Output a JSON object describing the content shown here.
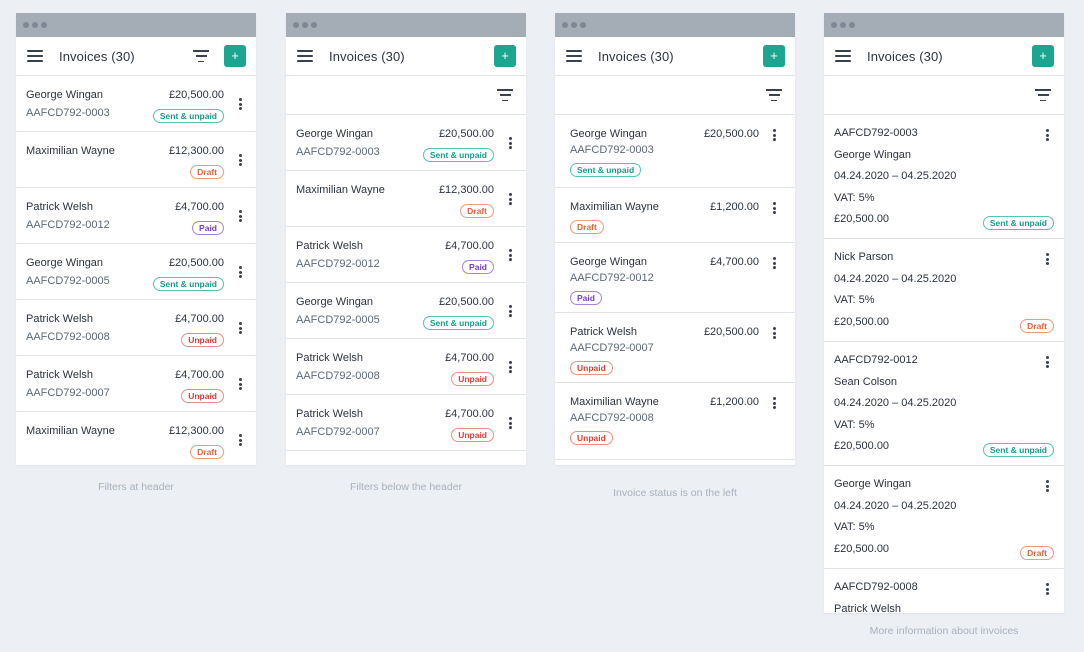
{
  "header": {
    "title": "Invoices (30)",
    "add_label": "+"
  },
  "colors": {
    "accent": "#1ea592",
    "sent": "#1a9c8a",
    "draft": "#e06540",
    "paid": "#7b3fc4",
    "unpaid": "#d8403a"
  },
  "mockups": [
    {
      "caption": "Filters at header",
      "rows": [
        {
          "name": "George Wingan",
          "id": "AAFCD792-0003",
          "amount": "£20,500.00",
          "status": "Sent & unpaid",
          "kind": "sent"
        },
        {
          "name": "Maximilian Wayne",
          "id": "",
          "amount": "£12,300.00",
          "status": "Draft",
          "kind": "draft"
        },
        {
          "name": "Patrick Welsh",
          "id": "AAFCD792-0012",
          "amount": "£4,700.00",
          "status": "Paid",
          "kind": "paid"
        },
        {
          "name": "George Wingan",
          "id": "AAFCD792-0005",
          "amount": "£20,500.00",
          "status": "Sent & unpaid",
          "kind": "sent"
        },
        {
          "name": "Patrick Welsh",
          "id": "AAFCD792-0008",
          "amount": "£4,700.00",
          "status": "Unpaid",
          "kind": "unpaid"
        },
        {
          "name": "Patrick Welsh",
          "id": "AAFCD792-0007",
          "amount": "£4,700.00",
          "status": "Unpaid",
          "kind": "unpaid"
        },
        {
          "name": "Maximilian Wayne",
          "id": "",
          "amount": "£12,300.00",
          "status": "Draft",
          "kind": "draft"
        }
      ]
    },
    {
      "caption": "Filters below the header",
      "rows": [
        {
          "name": "George Wingan",
          "id": "AAFCD792-0003",
          "amount": "£20,500.00",
          "status": "Sent & unpaid",
          "kind": "sent"
        },
        {
          "name": "Maximilian Wayne",
          "id": "",
          "amount": "£12,300.00",
          "status": "Draft",
          "kind": "draft"
        },
        {
          "name": "Patrick Welsh",
          "id": "AAFCD792-0012",
          "amount": "£4,700.00",
          "status": "Paid",
          "kind": "paid"
        },
        {
          "name": "George Wingan",
          "id": "AAFCD792-0005",
          "amount": "£20,500.00",
          "status": "Sent & unpaid",
          "kind": "sent"
        },
        {
          "name": "Patrick Welsh",
          "id": "AAFCD792-0008",
          "amount": "£4,700.00",
          "status": "Unpaid",
          "kind": "unpaid"
        },
        {
          "name": "Patrick Welsh",
          "id": "AAFCD792-0007",
          "amount": "£4,700.00",
          "status": "Unpaid",
          "kind": "unpaid"
        }
      ]
    },
    {
      "caption": "Invoice status is on the left",
      "rows": [
        {
          "name": "George Wingan",
          "id": "AAFCD792-0003",
          "amount": "£20,500.00",
          "status": "Sent & unpaid",
          "kind": "sent"
        },
        {
          "name": "Maximilian Wayne",
          "id": "",
          "amount": "£1,200.00",
          "status": "Draft",
          "kind": "draft"
        },
        {
          "name": "George Wingan",
          "id": "AAFCD792-0012",
          "amount": "£4,700.00",
          "status": "Paid",
          "kind": "paid"
        },
        {
          "name": "Patrick Welsh",
          "id": "AAFCD792-0007",
          "amount": "£20,500.00",
          "status": "Unpaid",
          "kind": "unpaid"
        },
        {
          "name": "Maximilian Wayne",
          "id": "AAFCD792-0008",
          "amount": "£1,200.00",
          "status": "Unpaid",
          "kind": "unpaid"
        }
      ]
    },
    {
      "caption": "More information about invoices",
      "cards": [
        {
          "lines": [
            "AAFCD792-0003",
            "George Wingan",
            "04.24.2020 – 04.25.2020",
            "VAT: 5%",
            "£20,500.00"
          ],
          "status": "Sent & unpaid",
          "kind": "sent"
        },
        {
          "lines": [
            "Nick Parson",
            "04.24.2020 – 04.25.2020",
            "VAT: 5%",
            "£20,500.00"
          ],
          "status": "Draft",
          "kind": "draft"
        },
        {
          "lines": [
            "AAFCD792-0012",
            "Sean Colson",
            "04.24.2020 – 04.25.2020",
            "VAT: 5%",
            "£20,500.00"
          ],
          "status": "Sent & unpaid",
          "kind": "sent"
        },
        {
          "lines": [
            "George Wingan",
            "04.24.2020 – 04.25.2020",
            "VAT: 5%",
            "£20,500.00"
          ],
          "status": "Draft",
          "kind": "draft"
        },
        {
          "lines": [
            "AAFCD792-0008",
            "Patrick Welsh"
          ],
          "status": "",
          "kind": ""
        }
      ]
    }
  ]
}
